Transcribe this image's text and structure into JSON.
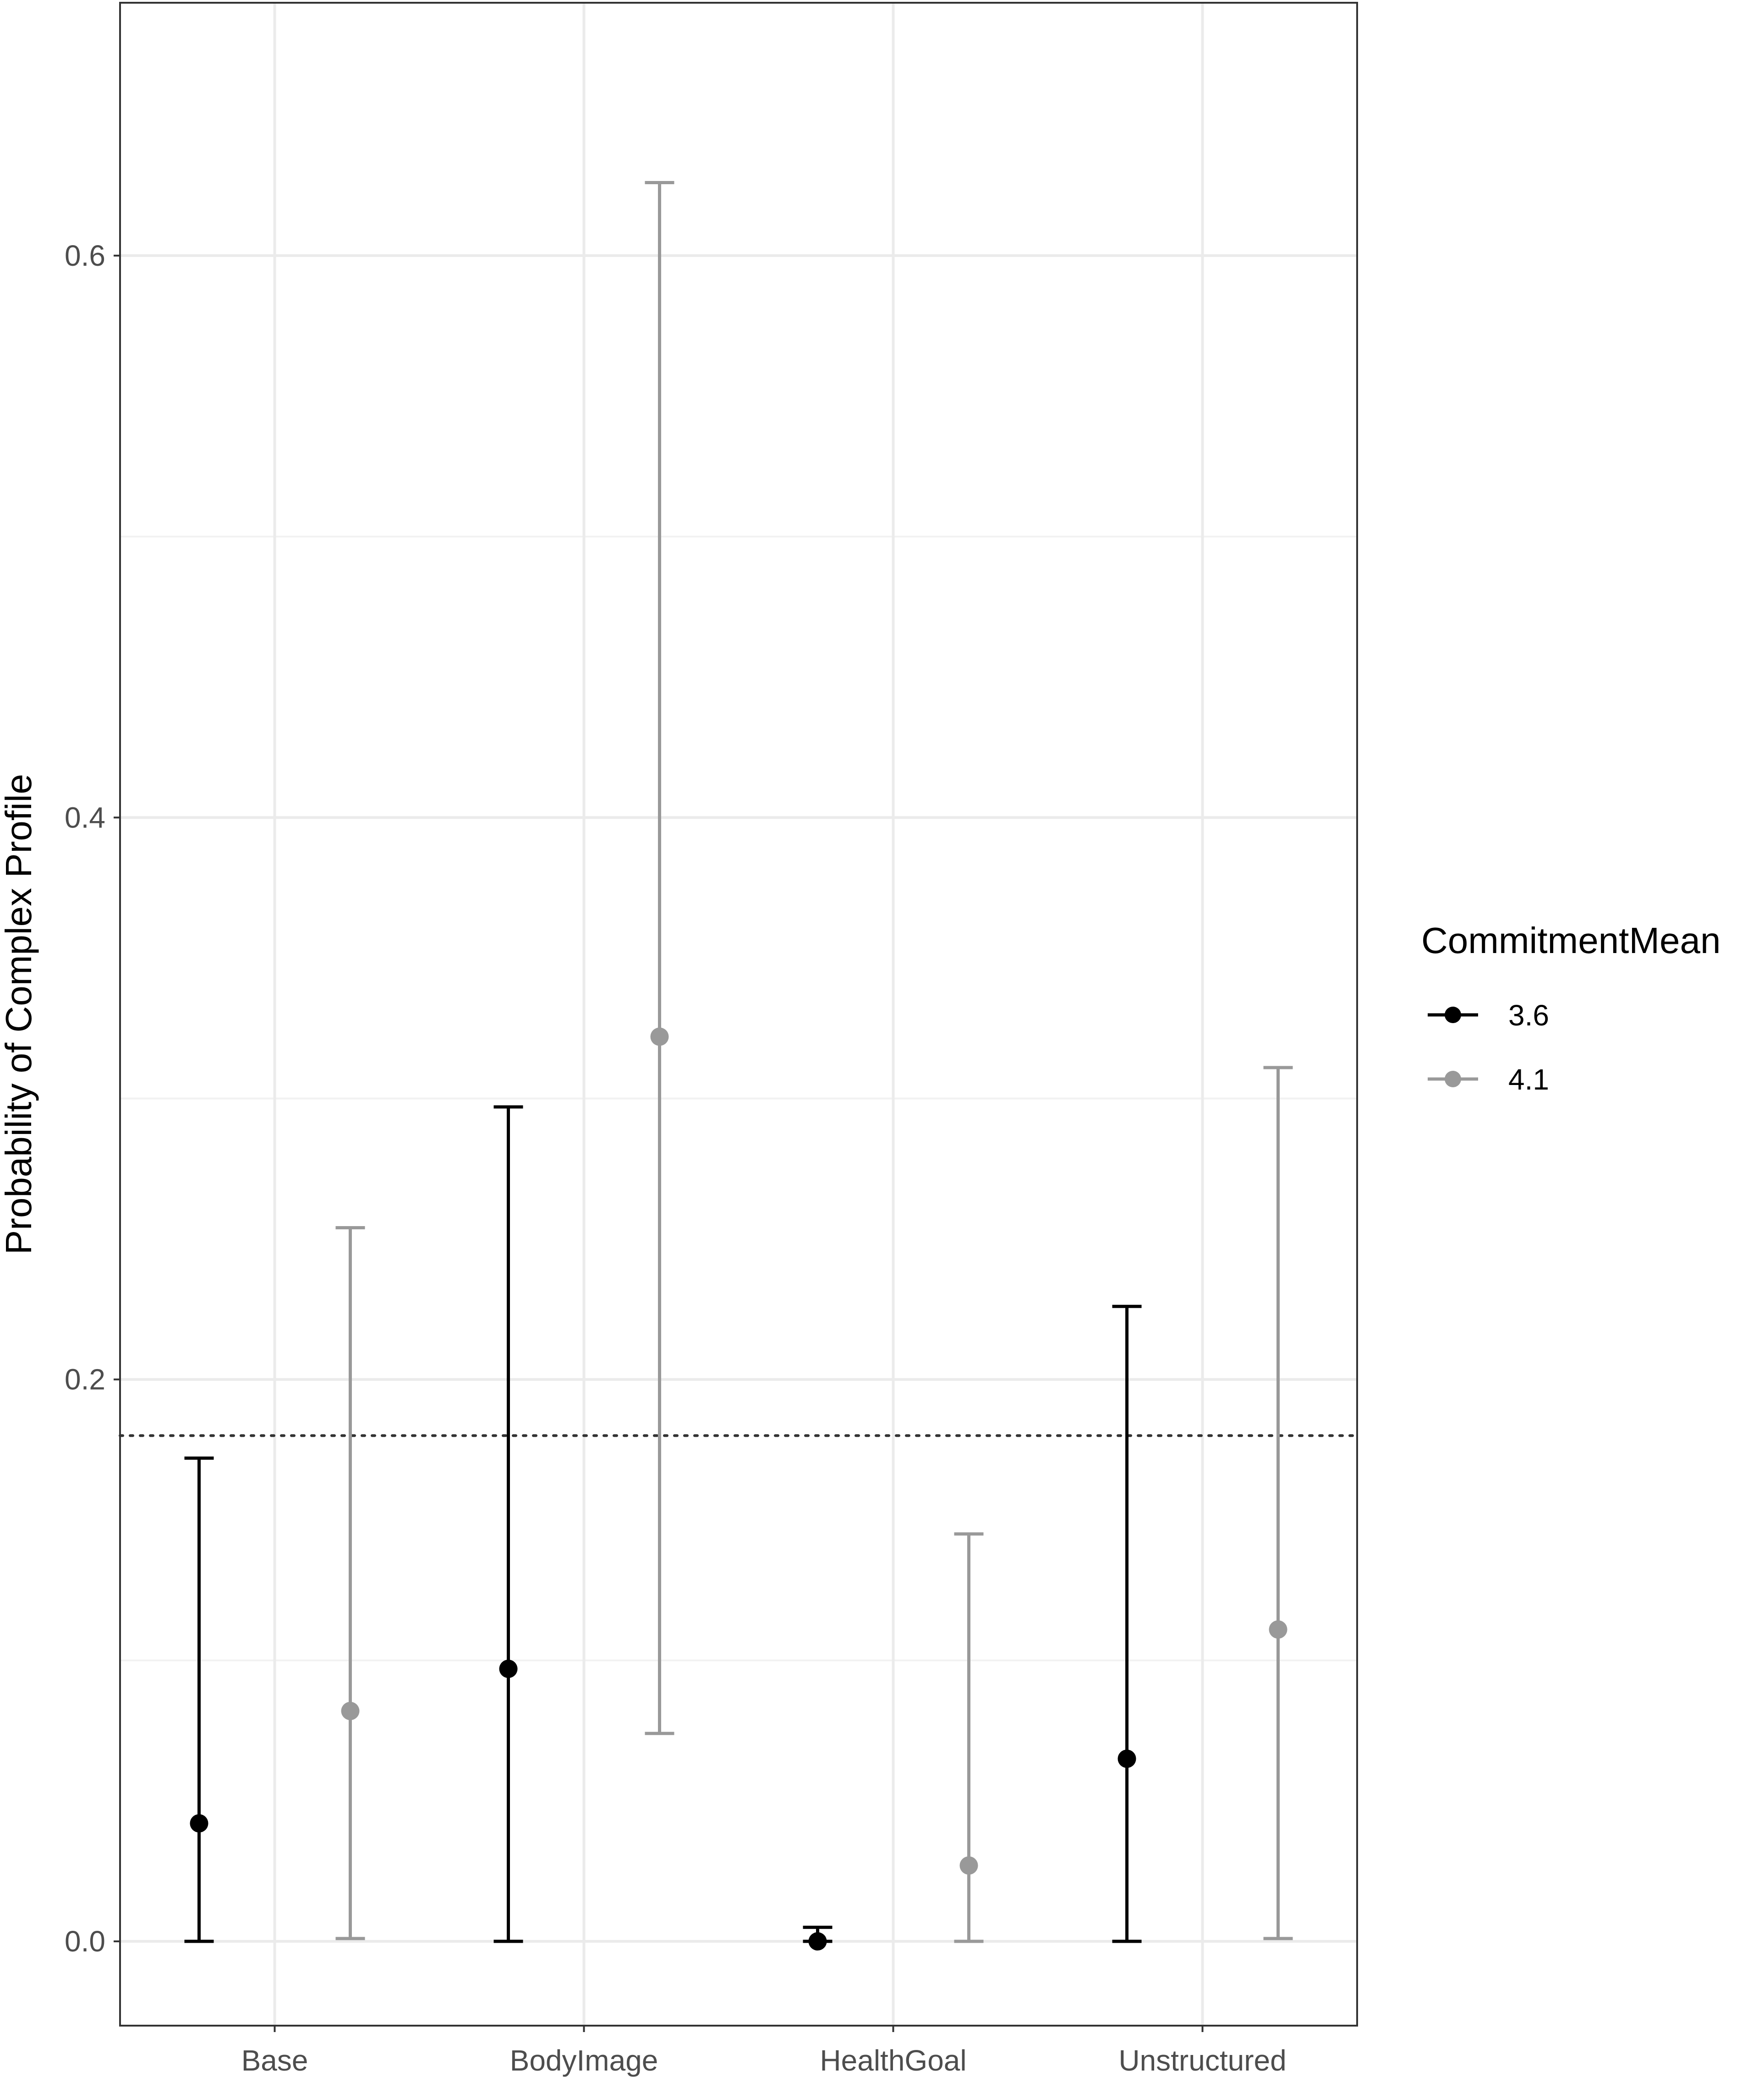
{
  "chart_data": {
    "type": "errorbar",
    "title": "",
    "xlabel": "",
    "ylabel": "Probability of Complex Profile",
    "categories": [
      "Base",
      "BodyImage",
      "HealthGoal",
      "Unstructured"
    ],
    "ylim": [
      -0.03,
      0.69
    ],
    "yticks": [
      0.0,
      0.2,
      0.4,
      0.6
    ],
    "ytick_labels": [
      "0.0",
      "0.2",
      "0.4",
      "0.6"
    ],
    "grid": true,
    "reference_line": {
      "y": 0.18,
      "style": "dotted"
    },
    "legend": {
      "title": "CommitmentMean",
      "placement": "right"
    },
    "series": [
      {
        "name": "3.6",
        "color": "#000000",
        "points": [
          {
            "category": "Base",
            "y": 0.042,
            "lower": 0.0,
            "upper": 0.172
          },
          {
            "category": "BodyImage",
            "y": 0.097,
            "lower": 0.0,
            "upper": 0.297
          },
          {
            "category": "HealthGoal",
            "y": 0.0,
            "lower": 0.0,
            "upper": 0.005
          },
          {
            "category": "Unstructured",
            "y": 0.065,
            "lower": 0.0,
            "upper": 0.226
          }
        ]
      },
      {
        "name": "4.1",
        "color": "#999999",
        "points": [
          {
            "category": "Base",
            "y": 0.082,
            "lower": 0.001,
            "upper": 0.254
          },
          {
            "category": "BodyImage",
            "y": 0.322,
            "lower": 0.074,
            "upper": 0.626
          },
          {
            "category": "HealthGoal",
            "y": 0.027,
            "lower": 0.0,
            "upper": 0.145
          },
          {
            "category": "Unstructured",
            "y": 0.111,
            "lower": 0.001,
            "upper": 0.311
          }
        ]
      }
    ]
  }
}
